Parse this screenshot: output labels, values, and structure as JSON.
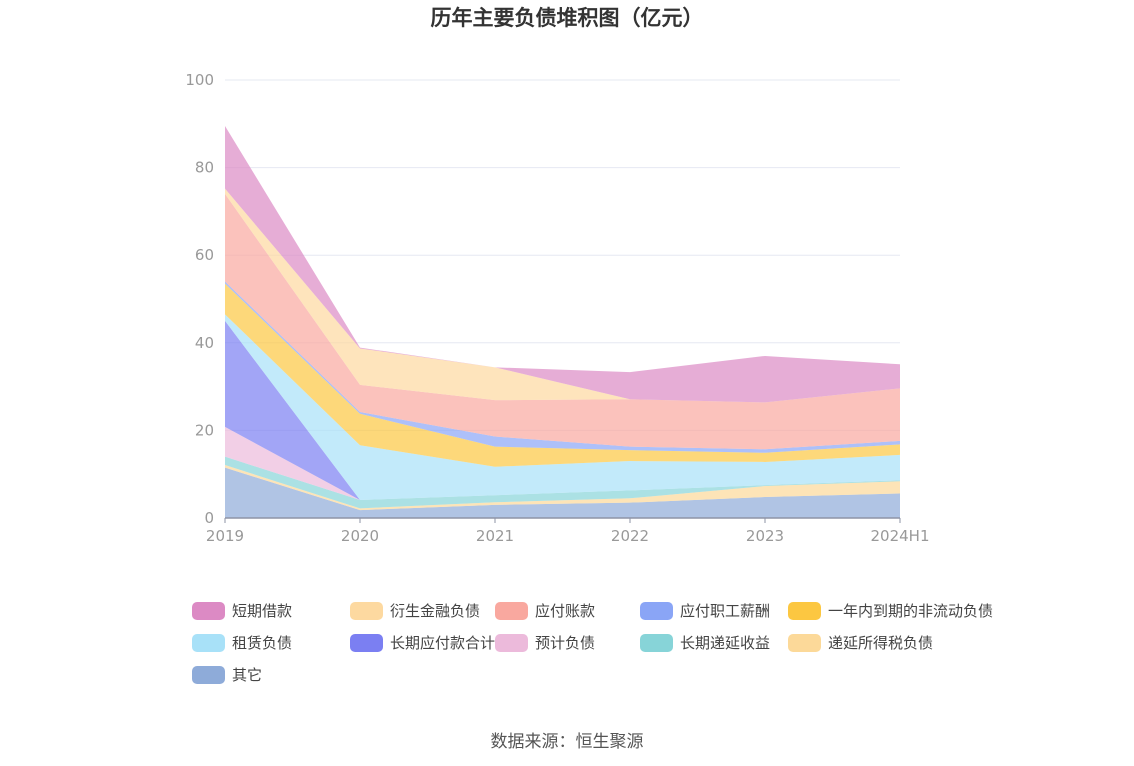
{
  "chart_data": {
    "type": "area",
    "stacked": true,
    "title": "历年主要负债堆积图（亿元）",
    "source": "数据来源：恒生聚源",
    "categories": [
      "2019",
      "2020",
      "2021",
      "2022",
      "2023",
      "2024H1"
    ],
    "ylim": [
      0,
      100
    ],
    "yticks": [
      0,
      20,
      40,
      60,
      80,
      100
    ],
    "grid": true,
    "legend_position": "bottom",
    "series": [
      {
        "name": "其它",
        "color": "#8eabd9",
        "values": [
          11.5,
          1.8,
          3.0,
          3.5,
          4.8,
          5.6
        ]
      },
      {
        "name": "递延所得税负债",
        "color": "#fcd999",
        "values": [
          0.6,
          0.4,
          0.6,
          1.0,
          2.5,
          2.8
        ]
      },
      {
        "name": "长期递延收益",
        "color": "#87d4d8",
        "values": [
          1.9,
          1.9,
          1.6,
          1.8,
          0.2,
          0.2
        ]
      },
      {
        "name": "预计负债",
        "color": "#ecbadb",
        "values": [
          6.8,
          0.0,
          0.0,
          0.0,
          0.0,
          0.0
        ]
      },
      {
        "name": "长期应付款合计",
        "color": "#7b7ff2",
        "values": [
          24.2,
          0.0,
          0.0,
          0.0,
          0.0,
          0.0
        ]
      },
      {
        "name": "租赁负债",
        "color": "#a8e1f8",
        "values": [
          1.5,
          12.5,
          6.5,
          6.7,
          5.3,
          5.8
        ]
      },
      {
        "name": "一年内到期的非流动负债",
        "color": "#fcc741",
        "values": [
          7.0,
          7.2,
          4.6,
          2.5,
          2.1,
          2.4
        ]
      },
      {
        "name": "应付职工薪酬",
        "color": "#8aa5f6",
        "values": [
          0.5,
          0.4,
          2.3,
          0.8,
          0.8,
          0.8
        ]
      },
      {
        "name": "应付账款",
        "color": "#f9a89f",
        "values": [
          20.0,
          6.2,
          8.3,
          10.8,
          10.7,
          12.0
        ]
      },
      {
        "name": "衍生金融负债",
        "color": "#fdd9a0",
        "values": [
          1.2,
          8.3,
          7.5,
          0.0,
          0.0,
          0.0
        ]
      },
      {
        "name": "短期借款",
        "color": "#dc8ac4",
        "values": [
          14.3,
          0.2,
          0.0,
          6.2,
          10.6,
          5.5
        ]
      }
    ]
  }
}
